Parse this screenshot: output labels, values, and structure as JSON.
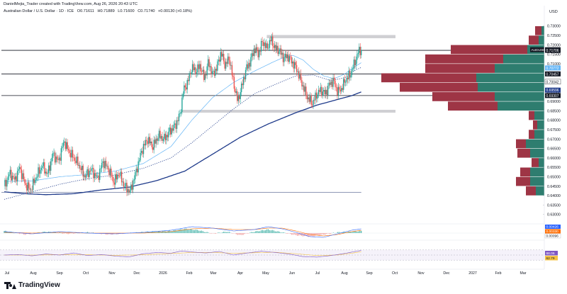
{
  "header": {
    "line1": "DanielMejia_Trader created with TradingView.com, Aug 26, 2026 20:43 UTC",
    "symbol": "Australian Dollar / U.S. Dollar · 1D · ICE",
    "open": "O0.71611",
    "high": "H0.71889",
    "low": "L0.71600",
    "close": "C0.71740",
    "change": "+0.00130 (+0.18%)",
    "currency": "USD"
  },
  "brand": "TradingView",
  "colors": {
    "bull": "#26a69a",
    "bear": "#ef5350",
    "ma_fast": "#64b5f6",
    "ma_slow": "#1e3a8a",
    "profile_green": "#2e7d6f",
    "profile_red": "#9e3545",
    "macd": "#2962ff",
    "signal": "#ff6d00",
    "rsi": "#7e57c2"
  },
  "chart_data": {
    "type": "candlestick",
    "title": "Australian Dollar / U.S. Dollar · 1D · ICE",
    "ylim": [
      0.625,
      0.7325
    ],
    "y_ticks": [
      "0.73000",
      "0.72500",
      "0.72000",
      "0.71500",
      "0.71000",
      "0.70500",
      "0.70000",
      "0.69500",
      "0.69000",
      "0.68500",
      "0.68000",
      "0.67500",
      "0.67000",
      "0.66500",
      "0.66000",
      "0.65500",
      "0.65000",
      "0.64500",
      "0.64000",
      "0.63500",
      "0.63000"
    ],
    "x_ticks": [
      "Jul",
      "Aug",
      "Sep",
      "Oct",
      "Nov",
      "Dec",
      "2026",
      "Feb",
      "Mar",
      "Apr",
      "May",
      "Jun",
      "Jul",
      "Aug",
      "Sep",
      "Oct",
      "Nov",
      "Dec",
      "2027",
      "Feb",
      "Mar"
    ],
    "price_path": [
      [
        0,
        0.645
      ],
      [
        8,
        0.652
      ],
      [
        15,
        0.648
      ],
      [
        22,
        0.655
      ],
      [
        30,
        0.646
      ],
      [
        38,
        0.643
      ],
      [
        46,
        0.65
      ],
      [
        55,
        0.656
      ],
      [
        62,
        0.651
      ],
      [
        70,
        0.662
      ],
      [
        78,
        0.658
      ],
      [
        86,
        0.669
      ],
      [
        92,
        0.664
      ],
      [
        100,
        0.66
      ],
      [
        108,
        0.656
      ],
      [
        116,
        0.65
      ],
      [
        125,
        0.654
      ],
      [
        134,
        0.649
      ],
      [
        142,
        0.658
      ],
      [
        150,
        0.654
      ],
      [
        158,
        0.647
      ],
      [
        165,
        0.652
      ],
      [
        173,
        0.645
      ],
      [
        181,
        0.642
      ],
      [
        190,
        0.653
      ],
      [
        198,
        0.664
      ],
      [
        206,
        0.67
      ],
      [
        214,
        0.666
      ],
      [
        222,
        0.672
      ],
      [
        230,
        0.67
      ],
      [
        238,
        0.674
      ],
      [
        246,
        0.677
      ],
      [
        253,
        0.683
      ],
      [
        258,
        0.696
      ],
      [
        264,
        0.7
      ],
      [
        270,
        0.708
      ],
      [
        276,
        0.706
      ],
      [
        282,
        0.709
      ],
      [
        288,
        0.702
      ],
      [
        294,
        0.711
      ],
      [
        300,
        0.704
      ],
      [
        306,
        0.708
      ],
      [
        312,
        0.716
      ],
      [
        318,
        0.709
      ],
      [
        324,
        0.713
      ],
      [
        330,
        0.7
      ],
      [
        336,
        0.69
      ],
      [
        342,
        0.698
      ],
      [
        348,
        0.707
      ],
      [
        354,
        0.711
      ],
      [
        360,
        0.718
      ],
      [
        366,
        0.715
      ],
      [
        372,
        0.722
      ],
      [
        378,
        0.718
      ],
      [
        384,
        0.723
      ],
      [
        390,
        0.718
      ],
      [
        396,
        0.717
      ],
      [
        402,
        0.713
      ],
      [
        408,
        0.714
      ],
      [
        414,
        0.711
      ],
      [
        420,
        0.708
      ],
      [
        426,
        0.702
      ],
      [
        432,
        0.696
      ],
      [
        438,
        0.691
      ],
      [
        444,
        0.689
      ],
      [
        450,
        0.694
      ],
      [
        456,
        0.696
      ],
      [
        462,
        0.694
      ],
      [
        468,
        0.699
      ],
      [
        474,
        0.701
      ],
      [
        480,
        0.695
      ],
      [
        486,
        0.697
      ],
      [
        492,
        0.702
      ],
      [
        498,
        0.704
      ],
      [
        504,
        0.71
      ],
      [
        510,
        0.7165
      ],
      [
        514,
        0.7174
      ]
    ],
    "ma_fast_path": [
      [
        0,
        0.6475
      ],
      [
        40,
        0.6478
      ],
      [
        80,
        0.65
      ],
      [
        120,
        0.6512
      ],
      [
        160,
        0.653
      ],
      [
        200,
        0.657
      ],
      [
        240,
        0.666
      ],
      [
        270,
        0.68
      ],
      [
        300,
        0.692
      ],
      [
        330,
        0.7
      ],
      [
        360,
        0.706
      ],
      [
        385,
        0.7105
      ],
      [
        400,
        0.713
      ],
      [
        415,
        0.7145
      ],
      [
        430,
        0.712
      ],
      [
        445,
        0.707
      ],
      [
        460,
        0.7035
      ],
      [
        475,
        0.702
      ],
      [
        490,
        0.7045
      ],
      [
        505,
        0.7085
      ],
      [
        514,
        0.7105
      ]
    ],
    "ma_dotted_path": [
      [
        0,
        0.638
      ],
      [
        40,
        0.642
      ],
      [
        80,
        0.646
      ],
      [
        120,
        0.649
      ],
      [
        160,
        0.651
      ],
      [
        200,
        0.6545
      ],
      [
        240,
        0.66
      ],
      [
        270,
        0.668
      ],
      [
        300,
        0.677
      ],
      [
        330,
        0.686
      ],
      [
        360,
        0.694
      ],
      [
        390,
        0.699
      ],
      [
        420,
        0.7035
      ],
      [
        445,
        0.704
      ],
      [
        470,
        0.701
      ],
      [
        490,
        0.7025
      ],
      [
        505,
        0.7065
      ],
      [
        514,
        0.708
      ]
    ],
    "ma_slow_path": [
      [
        0,
        0.642
      ],
      [
        30,
        0.641
      ],
      [
        60,
        0.6405
      ],
      [
        100,
        0.641
      ],
      [
        140,
        0.643
      ],
      [
        180,
        0.6445
      ],
      [
        220,
        0.648
      ],
      [
        260,
        0.653
      ],
      [
        300,
        0.662
      ],
      [
        340,
        0.671
      ],
      [
        380,
        0.678
      ],
      [
        420,
        0.684
      ],
      [
        450,
        0.688
      ],
      [
        480,
        0.691
      ],
      [
        500,
        0.693
      ],
      [
        514,
        0.695
      ]
    ],
    "horizontal_levels": [
      0.71706,
      0.70457,
      0.69307
    ],
    "support_zone": [
      0.684,
      0.6855
    ],
    "resistance_zone": [
      0.7235,
      0.7252
    ],
    "low_line": 0.6418,
    "price_labels": [
      {
        "label": "AUDUSD",
        "value": "0.71740",
        "kind": "last"
      },
      {
        "label": "",
        "value": "0.71706",
        "kind": "level"
      },
      {
        "label": "",
        "value": "0.70772",
        "kind": "ma_fast"
      },
      {
        "label": "",
        "value": "0.70457",
        "kind": "level"
      },
      {
        "label": "",
        "value": "0.70042",
        "kind": "ma_dotted"
      },
      {
        "label": "",
        "value": "0.69596",
        "kind": "ma_slow"
      },
      {
        "label": "",
        "value": "0.69307",
        "kind": "level"
      }
    ],
    "volume_profile": [
      {
        "price": 0.7275,
        "green": 4,
        "red": 9
      },
      {
        "price": 0.7225,
        "green": 8,
        "red": 14
      },
      {
        "price": 0.7175,
        "green": 24,
        "red": 108
      },
      {
        "price": 0.7125,
        "green": 58,
        "red": 110
      },
      {
        "price": 0.7075,
        "green": 70,
        "red": 98
      },
      {
        "price": 0.7025,
        "green": 96,
        "red": 134
      },
      {
        "price": 0.6975,
        "green": 94,
        "red": 110
      },
      {
        "price": 0.6925,
        "green": 70,
        "red": 88
      },
      {
        "price": 0.6875,
        "green": 66,
        "red": 70
      },
      {
        "price": 0.6825,
        "green": 14,
        "red": 8
      },
      {
        "price": 0.6775,
        "green": 10,
        "red": 6
      },
      {
        "price": 0.6725,
        "green": 14,
        "red": 8
      },
      {
        "price": 0.6675,
        "green": 26,
        "red": 14
      },
      {
        "price": 0.6625,
        "green": 20,
        "red": 18
      },
      {
        "price": 0.6575,
        "green": 8,
        "red": 10
      },
      {
        "price": 0.6525,
        "green": 20,
        "red": 14
      },
      {
        "price": 0.6475,
        "green": 20,
        "red": 20
      },
      {
        "price": 0.6425,
        "green": 12,
        "red": 14
      }
    ],
    "macd": {
      "labels": [
        "0.00426",
        "0.00330",
        "0.00096"
      ],
      "hist_path": [
        [
          0,
          3
        ],
        [
          30,
          -2
        ],
        [
          60,
          2
        ],
        [
          90,
          -1
        ],
        [
          120,
          1
        ],
        [
          150,
          -2
        ],
        [
          180,
          0
        ],
        [
          210,
          2
        ],
        [
          240,
          3
        ],
        [
          260,
          6
        ],
        [
          280,
          4
        ],
        [
          300,
          -1
        ],
        [
          320,
          2
        ],
        [
          340,
          -3
        ],
        [
          360,
          2
        ],
        [
          380,
          5
        ],
        [
          400,
          1
        ],
        [
          420,
          -3
        ],
        [
          440,
          -5
        ],
        [
          460,
          -2
        ],
        [
          480,
          1
        ],
        [
          500,
          2
        ],
        [
          514,
          3
        ]
      ],
      "macd_path": [
        [
          0,
          2
        ],
        [
          40,
          -1
        ],
        [
          80,
          2
        ],
        [
          120,
          0
        ],
        [
          160,
          -1
        ],
        [
          200,
          1
        ],
        [
          240,
          4
        ],
        [
          270,
          9
        ],
        [
          300,
          7
        ],
        [
          330,
          3
        ],
        [
          360,
          5
        ],
        [
          380,
          9
        ],
        [
          400,
          6
        ],
        [
          420,
          1
        ],
        [
          440,
          -5
        ],
        [
          460,
          -6
        ],
        [
          480,
          -1
        ],
        [
          500,
          4
        ],
        [
          514,
          6
        ]
      ],
      "signal_path": [
        [
          0,
          1
        ],
        [
          40,
          0
        ],
        [
          80,
          1
        ],
        [
          120,
          0
        ],
        [
          160,
          0
        ],
        [
          200,
          0
        ],
        [
          240,
          2
        ],
        [
          270,
          6
        ],
        [
          300,
          7
        ],
        [
          330,
          5
        ],
        [
          360,
          5
        ],
        [
          380,
          7
        ],
        [
          400,
          7
        ],
        [
          420,
          3
        ],
        [
          440,
          -2
        ],
        [
          460,
          -4
        ],
        [
          480,
          -2
        ],
        [
          500,
          2
        ],
        [
          514,
          4
        ]
      ]
    },
    "rsi": {
      "labels": [
        "68.06",
        "62.79"
      ],
      "rsi_path": [
        [
          0,
          50
        ],
        [
          20,
          52
        ],
        [
          40,
          47
        ],
        [
          60,
          54
        ],
        [
          80,
          50
        ],
        [
          100,
          58
        ],
        [
          120,
          48
        ],
        [
          140,
          52
        ],
        [
          160,
          46
        ],
        [
          180,
          43
        ],
        [
          200,
          55
        ],
        [
          220,
          60
        ],
        [
          240,
          57
        ],
        [
          255,
          66
        ],
        [
          270,
          62
        ],
        [
          290,
          58
        ],
        [
          310,
          64
        ],
        [
          330,
          50
        ],
        [
          350,
          58
        ],
        [
          370,
          65
        ],
        [
          390,
          60
        ],
        [
          410,
          54
        ],
        [
          430,
          44
        ],
        [
          450,
          42
        ],
        [
          470,
          48
        ],
        [
          490,
          56
        ],
        [
          505,
          64
        ],
        [
          514,
          68
        ]
      ],
      "ma_path": [
        [
          0,
          50
        ],
        [
          40,
          50
        ],
        [
          80,
          51
        ],
        [
          120,
          51
        ],
        [
          160,
          49
        ],
        [
          200,
          51
        ],
        [
          240,
          56
        ],
        [
          270,
          60
        ],
        [
          300,
          60
        ],
        [
          330,
          57
        ],
        [
          360,
          59
        ],
        [
          390,
          61
        ],
        [
          420,
          55
        ],
        [
          450,
          48
        ],
        [
          480,
          50
        ],
        [
          500,
          57
        ],
        [
          514,
          62.8
        ]
      ]
    }
  }
}
